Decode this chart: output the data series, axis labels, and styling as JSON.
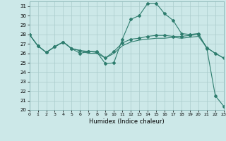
{
  "xlabel": "Humidex (Indice chaleur)",
  "background_color": "#cce8e8",
  "grid_color": "#aacccc",
  "line_color": "#2e7d6e",
  "x_values": [
    0,
    1,
    2,
    3,
    4,
    5,
    6,
    7,
    8,
    9,
    10,
    11,
    12,
    13,
    14,
    15,
    16,
    17,
    18,
    19,
    20,
    21,
    22,
    23
  ],
  "series1": [
    28.0,
    26.8,
    26.1,
    26.7,
    27.2,
    26.5,
    26.0,
    26.2,
    26.1,
    24.9,
    25.0,
    27.5,
    29.6,
    30.0,
    31.3,
    31.3,
    30.2,
    29.5,
    28.1,
    28.0,
    28.1,
    26.5,
    21.5,
    20.4
  ],
  "series2": [
    28.0,
    26.8,
    26.1,
    26.7,
    27.2,
    26.5,
    26.3,
    26.2,
    26.2,
    25.5,
    26.2,
    27.1,
    27.5,
    27.6,
    27.8,
    27.9,
    27.9,
    27.8,
    27.8,
    27.9,
    28.0,
    26.6,
    26.0,
    25.5
  ],
  "series3": [
    28.0,
    26.8,
    26.1,
    26.7,
    27.2,
    26.5,
    26.3,
    26.0,
    26.0,
    25.5,
    26.0,
    26.8,
    27.2,
    27.4,
    27.5,
    27.6,
    27.6,
    27.7,
    27.6,
    27.7,
    27.8,
    26.6,
    26.0,
    25.5
  ],
  "ylim": [
    20,
    31.5
  ],
  "xlim": [
    0,
    23
  ],
  "yticks": [
    20,
    21,
    22,
    23,
    24,
    25,
    26,
    27,
    28,
    29,
    30,
    31
  ],
  "xticks": [
    0,
    1,
    2,
    3,
    4,
    5,
    6,
    7,
    8,
    9,
    10,
    11,
    12,
    13,
    14,
    15,
    16,
    17,
    18,
    19,
    20,
    21,
    22,
    23
  ]
}
